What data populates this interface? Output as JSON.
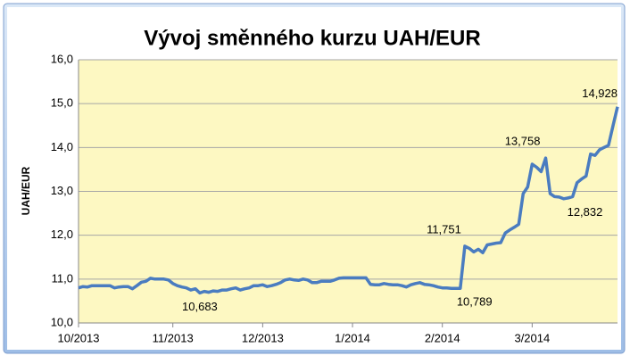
{
  "chart_data": {
    "type": "line",
    "title": "Vývoj směnného kurzu UAH/EUR",
    "y_label": "UAH/EUR",
    "xlim": [
      0,
      120
    ],
    "xticks": [
      {
        "value": 0,
        "label": "10/2013"
      },
      {
        "value": 21,
        "label": "11/2013"
      },
      {
        "value": 41,
        "label": "12/2013"
      },
      {
        "value": 61,
        "label": "1/2014"
      },
      {
        "value": 81,
        "label": "2/2014"
      },
      {
        "value": 101,
        "label": "3/2014"
      }
    ],
    "ylim": [
      10,
      16
    ],
    "yticks": [
      {
        "value": 10,
        "label": "10,0"
      },
      {
        "value": 11,
        "label": "11,0"
      },
      {
        "value": 12,
        "label": "12,0"
      },
      {
        "value": 13,
        "label": "13,0"
      },
      {
        "value": 14,
        "label": "14,0"
      },
      {
        "value": 15,
        "label": "15,0"
      },
      {
        "value": 16,
        "label": "16,0"
      }
    ],
    "grid": true,
    "series": [
      {
        "name": "UAH/EUR",
        "color": "#4a7cc0",
        "values": [
          10.8,
          10.83,
          10.82,
          10.85,
          10.85,
          10.85,
          10.85,
          10.85,
          10.8,
          10.82,
          10.83,
          10.83,
          10.78,
          10.85,
          10.93,
          10.95,
          11.02,
          11.0,
          11.0,
          11.0,
          10.98,
          10.9,
          10.85,
          10.82,
          10.8,
          10.75,
          10.78,
          10.683,
          10.72,
          10.7,
          10.73,
          10.72,
          10.75,
          10.75,
          10.78,
          10.8,
          10.75,
          10.78,
          10.8,
          10.85,
          10.85,
          10.87,
          10.83,
          10.85,
          10.88,
          10.92,
          10.98,
          11.0,
          10.98,
          10.97,
          11.0,
          10.98,
          10.92,
          10.92,
          10.95,
          10.95,
          10.95,
          10.98,
          11.02,
          11.03,
          11.03,
          11.03,
          11.03,
          11.03,
          11.03,
          10.88,
          10.87,
          10.87,
          10.9,
          10.88,
          10.87,
          10.87,
          10.85,
          10.82,
          10.87,
          10.9,
          10.92,
          10.88,
          10.87,
          10.85,
          10.82,
          10.8,
          10.8,
          10.79,
          10.79,
          10.789,
          11.751,
          11.7,
          11.62,
          11.68,
          11.6,
          11.78,
          11.8,
          11.82,
          11.83,
          12.05,
          12.12,
          12.18,
          12.25,
          12.95,
          13.1,
          13.62,
          13.55,
          13.45,
          13.758,
          12.95,
          12.88,
          12.87,
          12.832,
          12.85,
          12.88,
          13.2,
          13.28,
          13.35,
          13.85,
          13.82,
          13.95,
          14.0,
          14.05,
          14.5,
          14.928
        ],
        "value_labels": [
          null,
          null,
          null,
          null,
          null,
          null,
          null,
          null,
          null,
          null,
          null,
          null,
          null,
          null,
          null,
          null,
          null,
          null,
          null,
          null,
          null,
          null,
          null,
          null,
          null,
          null,
          null,
          "10,683",
          null,
          null,
          null,
          null,
          null,
          null,
          null,
          null,
          null,
          null,
          null,
          null,
          null,
          null,
          null,
          null,
          null,
          null,
          null,
          null,
          null,
          null,
          null,
          null,
          null,
          null,
          null,
          null,
          null,
          null,
          null,
          null,
          null,
          null,
          null,
          null,
          null,
          null,
          null,
          null,
          null,
          null,
          null,
          null,
          null,
          null,
          null,
          null,
          null,
          null,
          null,
          null,
          null,
          null,
          null,
          null,
          null,
          "10,789",
          "11,751",
          null,
          null,
          null,
          null,
          null,
          null,
          null,
          null,
          null,
          null,
          null,
          null,
          null,
          null,
          null,
          null,
          null,
          "13,758",
          null,
          null,
          null,
          "12,832",
          null,
          null,
          null,
          null,
          null,
          null,
          null,
          null,
          null,
          null,
          null,
          "14,928"
        ]
      }
    ]
  }
}
